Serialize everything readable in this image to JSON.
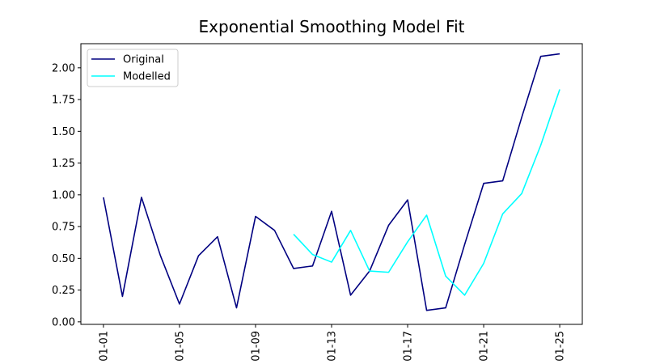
{
  "chart_data": {
    "type": "line",
    "title": "Exponential Smoothing Model Fit",
    "xlabel": "",
    "ylabel": "",
    "x": [
      "01-01",
      "01-02",
      "01-03",
      "01-04",
      "01-05",
      "01-06",
      "01-07",
      "01-08",
      "01-09",
      "01-10",
      "01-11",
      "01-12",
      "01-13",
      "01-14",
      "01-15",
      "01-16",
      "01-17",
      "01-18",
      "01-19",
      "01-20",
      "01-21",
      "01-22",
      "01-23",
      "01-24",
      "01-25"
    ],
    "x_tick_labels": [
      "01-01",
      "01-05",
      "01-09",
      "01-13",
      "01-17",
      "01-21",
      "01-25"
    ],
    "y_ticks": [
      "0.00",
      "0.25",
      "0.50",
      "0.75",
      "1.00",
      "1.25",
      "1.50",
      "1.75",
      "2.00"
    ],
    "ylim": [
      -0.02,
      2.19
    ],
    "grid": false,
    "legend": "upper-left",
    "series": [
      {
        "name": "Original",
        "color": "#000080",
        "values": [
          0.98,
          0.2,
          0.98,
          0.52,
          0.14,
          0.52,
          0.67,
          0.11,
          0.83,
          0.72,
          0.42,
          0.44,
          0.87,
          0.21,
          0.4,
          0.76,
          0.96,
          0.09,
          0.11,
          0.61,
          1.09,
          1.11,
          1.61,
          2.09,
          2.11
        ]
      },
      {
        "name": "Modelled",
        "color": "#00FFFF",
        "values": [
          null,
          null,
          null,
          null,
          null,
          null,
          null,
          null,
          null,
          null,
          0.69,
          0.53,
          0.47,
          0.72,
          0.4,
          0.39,
          0.63,
          0.84,
          0.36,
          0.21,
          0.46,
          0.85,
          1.01,
          1.39,
          1.83
        ]
      }
    ]
  }
}
